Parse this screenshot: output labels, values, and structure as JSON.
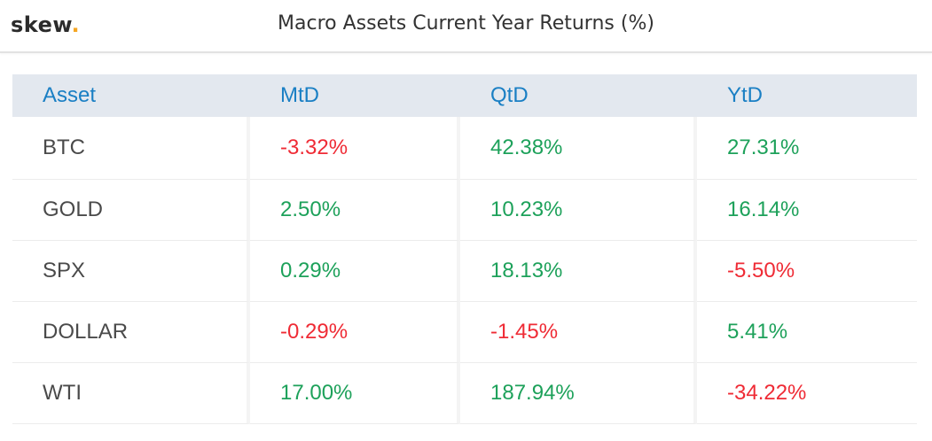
{
  "header": {
    "logo_text": "skew",
    "logo_dot": ".",
    "title": "Macro Assets Current Year Returns (%)"
  },
  "colors": {
    "positive": "#1da15a",
    "negative": "#ef2b35",
    "header_text": "#1a7fc4",
    "header_bg": "#e3e8ef",
    "logo_accent": "#f5a623"
  },
  "table": {
    "columns": [
      "Asset",
      "MtD",
      "QtD",
      "YtD"
    ],
    "rows": [
      {
        "asset": "BTC",
        "mtd": "-3.32%",
        "qtd": "42.38%",
        "ytd": "27.31%"
      },
      {
        "asset": "GOLD",
        "mtd": "2.50%",
        "qtd": "10.23%",
        "ytd": "16.14%"
      },
      {
        "asset": "SPX",
        "mtd": "0.29%",
        "qtd": "18.13%",
        "ytd": "-5.50%"
      },
      {
        "asset": "DOLLAR",
        "mtd": "-0.29%",
        "qtd": "-1.45%",
        "ytd": "5.41%"
      },
      {
        "asset": "WTI",
        "mtd": "17.00%",
        "qtd": "187.94%",
        "ytd": "-34.22%"
      }
    ]
  }
}
